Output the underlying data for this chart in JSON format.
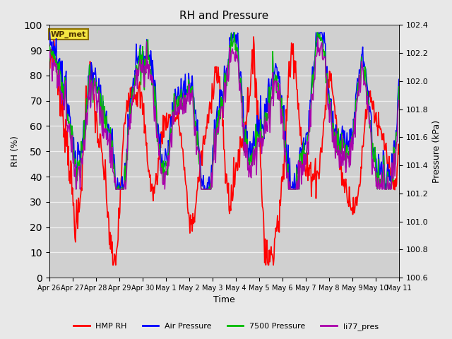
{
  "title": "RH and Pressure",
  "xlabel": "Time",
  "ylabel_left": "RH (%)",
  "ylabel_right": "Pressure (kPa)",
  "ylim_left": [
    0,
    100
  ],
  "ylim_right": [
    100.6,
    102.4
  ],
  "background_color": "#e8e8e8",
  "plot_bg_color": "#d0d0d0",
  "grid_color": "#f0f0f0",
  "annotation_text": "WP_met",
  "annotation_box_color": "#f5e642",
  "annotation_border_color": "#8b7000",
  "series": {
    "HMP_RH": {
      "color": "#ff0000",
      "lw": 1.2,
      "label": "HMP RH"
    },
    "Air_Pres": {
      "color": "#0000ff",
      "lw": 1.1,
      "label": "Air Pressure"
    },
    "P7500": {
      "color": "#00bb00",
      "lw": 1.1,
      "label": "7500 Pressure"
    },
    "li77": {
      "color": "#aa00aa",
      "lw": 1.1,
      "label": "li77_pres"
    }
  },
  "xtick_labels": [
    "Apr 26",
    "Apr 27",
    "Apr 28",
    "Apr 29",
    "Apr 30",
    "May 1",
    "May 2",
    "May 3",
    "May 4",
    "May 5",
    "May 6",
    "May 7",
    "May 8",
    "May 9",
    "May 10",
    "May 11"
  ],
  "yticks_left": [
    0,
    10,
    20,
    30,
    40,
    50,
    60,
    70,
    80,
    90,
    100
  ],
  "yticks_right": [
    100.6,
    100.8,
    101.0,
    101.2,
    101.4,
    101.6,
    101.8,
    102.0,
    102.2,
    102.4
  ],
  "figsize": [
    6.4,
    4.8
  ],
  "dpi": 100
}
